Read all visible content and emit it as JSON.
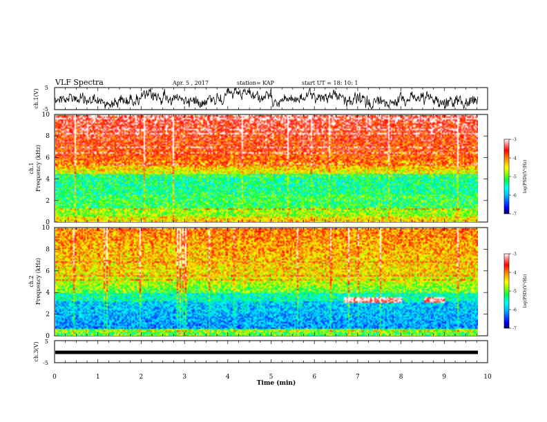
{
  "header": {
    "title": "VLF Spectra",
    "date": "Apr. 5 , 2017",
    "station": "station= KAP",
    "start": "start UT = 18: 10: 1"
  },
  "chart_data": [
    {
      "type": "line",
      "name": "ch1-waveform",
      "ylabel": "ch.1(V)",
      "ylim": [
        -5,
        5
      ],
      "yticks": [
        "5",
        "-5"
      ],
      "xlim": [
        0,
        10
      ],
      "grid": false
    },
    {
      "type": "heatmap",
      "name": "ch1-spectrogram",
      "ylabel": "ch.1\nFrequency (kHz)",
      "ylim": [
        0,
        10
      ],
      "yticks": [
        "0",
        "2",
        "4",
        "6",
        "8",
        "10"
      ],
      "xlim": [
        0,
        10
      ],
      "colorbar": {
        "label": "log(PSD)(V²/Hz)",
        "range": [
          -7,
          -3
        ],
        "ticks": [
          "-3",
          "-4",
          "-5",
          "-6",
          "-7"
        ]
      }
    },
    {
      "type": "heatmap",
      "name": "ch2-spectrogram",
      "ylabel": "ch.2\nFrequency (kHz)",
      "ylim": [
        0,
        10
      ],
      "yticks": [
        "0",
        "2",
        "4",
        "6",
        "8",
        "10"
      ],
      "xlim": [
        0,
        10
      ],
      "colorbar": {
        "label": "log(PSD)(V²/Hz)",
        "range": [
          -7,
          -3
        ],
        "ticks": [
          "-3",
          "-4",
          "-5",
          "-6",
          "-7"
        ]
      }
    },
    {
      "type": "line",
      "name": "ch3-waveform",
      "ylabel": "ch.3(V)",
      "ylim": [
        -5,
        5
      ],
      "yticks": [
        "5",
        "-5"
      ],
      "xlim": [
        0,
        10
      ],
      "constant_value": 0,
      "grid": false
    }
  ],
  "xaxis": {
    "label": "Time (min)",
    "ticks": [
      "0",
      "1",
      "2",
      "3",
      "4",
      "5",
      "6",
      "7",
      "8",
      "9",
      "10"
    ],
    "range": [
      0,
      10
    ]
  },
  "colors": {
    "colormap": [
      "#000080",
      "#0000ff",
      "#00a0ff",
      "#00ffff",
      "#00ff60",
      "#7fff00",
      "#ffff00",
      "#ffa000",
      "#ff2000",
      "#ff0000",
      "#ff8080",
      "#ffffff"
    ]
  }
}
